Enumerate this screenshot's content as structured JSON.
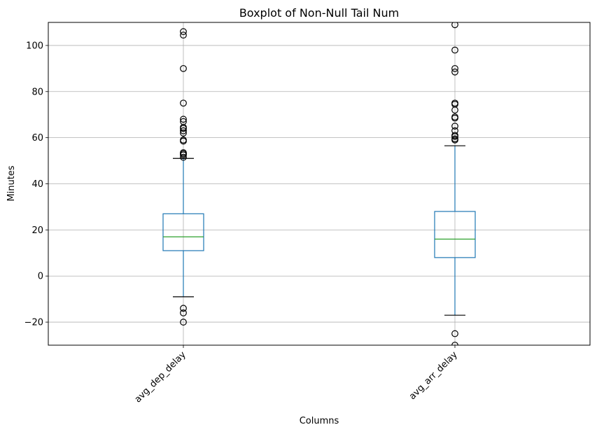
{
  "chart_data": {
    "type": "box",
    "title": "Boxplot of Non-Null Tail Num",
    "xlabel": "Columns",
    "ylabel": "Minutes",
    "ylim": [
      -30,
      110
    ],
    "yticks": [
      -20,
      0,
      20,
      40,
      60,
      80,
      100
    ],
    "grid": true,
    "categories": [
      "avg_dep_delay",
      "avg_arr_delay"
    ],
    "series": [
      {
        "category": "avg_dep_delay",
        "whisker_low": -9,
        "q1": 11,
        "median": 17,
        "q3": 27,
        "whisker_high": 51,
        "outliers": [
          106,
          104.5,
          90,
          75,
          68,
          67,
          64.5,
          64,
          63,
          62,
          59,
          58.5,
          53.5,
          53,
          52.5,
          51.5,
          -14,
          -16,
          -20
        ]
      },
      {
        "category": "avg_arr_delay",
        "whisker_low": -17,
        "q1": 8,
        "median": 16,
        "q3": 28,
        "whisker_high": 56.5,
        "outliers": [
          109,
          98,
          90,
          88.5,
          75,
          74.5,
          72,
          69,
          68.5,
          65,
          63,
          61,
          60.5,
          59.5,
          59,
          -25,
          -30
        ]
      }
    ],
    "colors": {
      "box": "#1f77b4",
      "median": "#2ca02c",
      "whisker_cap": "#000000",
      "outlier": "#000000",
      "grid": "#b0b0b0"
    }
  }
}
